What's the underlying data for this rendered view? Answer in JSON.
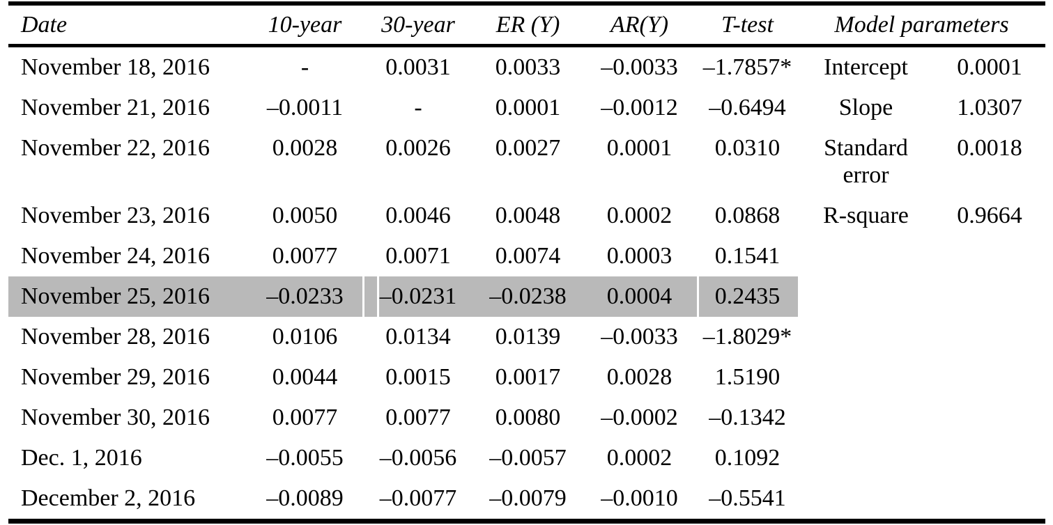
{
  "table": {
    "headers": {
      "date": "Date",
      "y10": "10-year",
      "y30": "30-year",
      "er": "ER (Y)",
      "ar": "AR(Y)",
      "t": "T-test",
      "model": "Model parameters"
    },
    "highlight_color": "#b9b9b9",
    "rows": [
      {
        "date": "November 18, 2016",
        "y10": "-",
        "y30": "0.0031",
        "er": "0.0033",
        "ar": "–0.0033",
        "t": "–1.7857*",
        "param": "Intercept",
        "pval": "0.0001",
        "highlighted": false
      },
      {
        "date": "November 21, 2016",
        "y10": "–0.0011",
        "y30": "-",
        "er": "0.0001",
        "ar": "–0.0012",
        "t": "–0.6494",
        "param": "Slope",
        "pval": "1.0307",
        "highlighted": false
      },
      {
        "date": "November 22, 2016",
        "y10": "0.0028",
        "y30": "0.0026",
        "er": "0.0027",
        "ar": "0.0001",
        "t": "0.0310",
        "param": "Standard error",
        "pval": "0.0018",
        "highlighted": false
      },
      {
        "date": "November 23, 2016",
        "y10": "0.0050",
        "y30": "0.0046",
        "er": "0.0048",
        "ar": "0.0002",
        "t": "0.0868",
        "param": "R-square",
        "pval": "0.9664",
        "highlighted": false
      },
      {
        "date": "November 24, 2016",
        "y10": "0.0077",
        "y30": "0.0071",
        "er": "0.0074",
        "ar": "0.0003",
        "t": "0.1541",
        "param": "",
        "pval": "",
        "highlighted": false
      },
      {
        "date": "November 25, 2016",
        "y10": "–0.0233",
        "y30": "–0.0231",
        "er": "–0.0238",
        "ar": "0.0004",
        "t": "0.2435",
        "param": "",
        "pval": "",
        "highlighted": true
      },
      {
        "date": "November 28, 2016",
        "y10": "0.0106",
        "y30": "0.0134",
        "er": "0.0139",
        "ar": "–0.0033",
        "t": "–1.8029*",
        "param": "",
        "pval": "",
        "highlighted": false
      },
      {
        "date": "November 29, 2016",
        "y10": "0.0044",
        "y30": "0.0015",
        "er": "0.0017",
        "ar": "0.0028",
        "t": "1.5190",
        "param": "",
        "pval": "",
        "highlighted": false
      },
      {
        "date": "November 30, 2016",
        "y10": "0.0077",
        "y30": "0.0077",
        "er": "0.0080",
        "ar": "–0.0002",
        "t": "–0.1342",
        "param": "",
        "pval": "",
        "highlighted": false
      },
      {
        "date": "Dec. 1, 2016",
        "y10": "–0.0055",
        "y30": "–0.0056",
        "er": "–0.0057",
        "ar": "0.0002",
        "t": "0.1092",
        "param": "",
        "pval": "",
        "highlighted": false
      },
      {
        "date": "December 2, 2016",
        "y10": "–0.0089",
        "y30": "–0.0077",
        "er": "–0.0079",
        "ar": "–0.0010",
        "t": "–0.5541",
        "param": "",
        "pval": "",
        "highlighted": false
      }
    ]
  }
}
